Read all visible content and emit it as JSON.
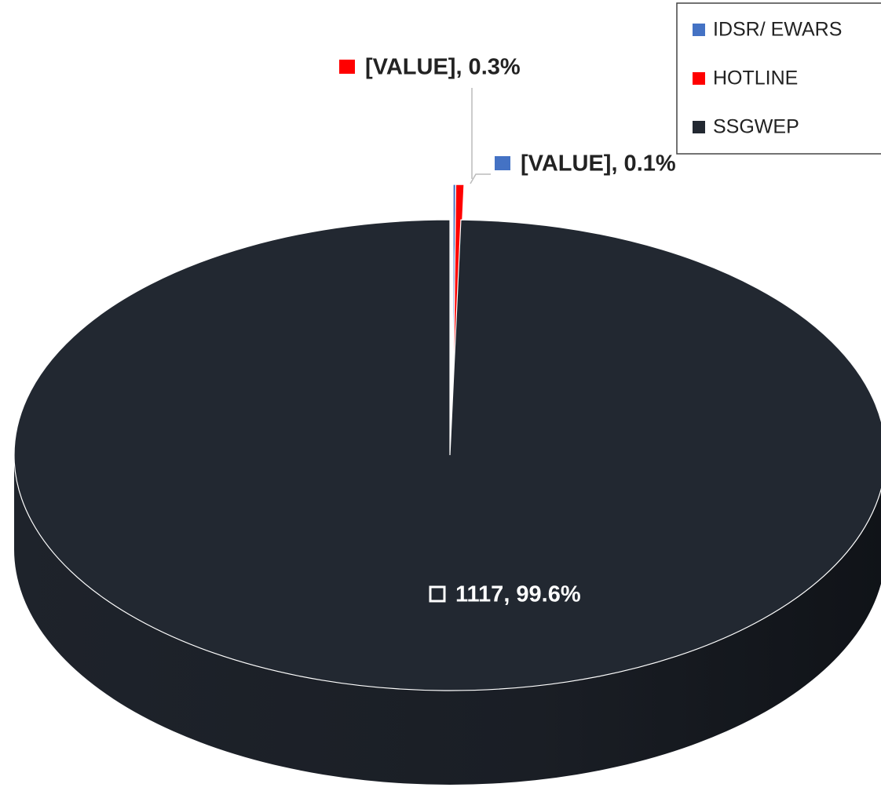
{
  "chart_data": {
    "type": "pie",
    "three_d": true,
    "categories": [
      "IDSR/ EWARS",
      "HOTLINE",
      "SSGWEP"
    ],
    "values": [
      0.1,
      0.3,
      99.6
    ],
    "value_labels": [
      "[VALUE], 0.1%",
      "[VALUE], 0.3%",
      "1117, 99.6%"
    ],
    "colors": [
      "#4472c4",
      "#ff0000",
      "#222831"
    ],
    "legend": "top-right"
  }
}
